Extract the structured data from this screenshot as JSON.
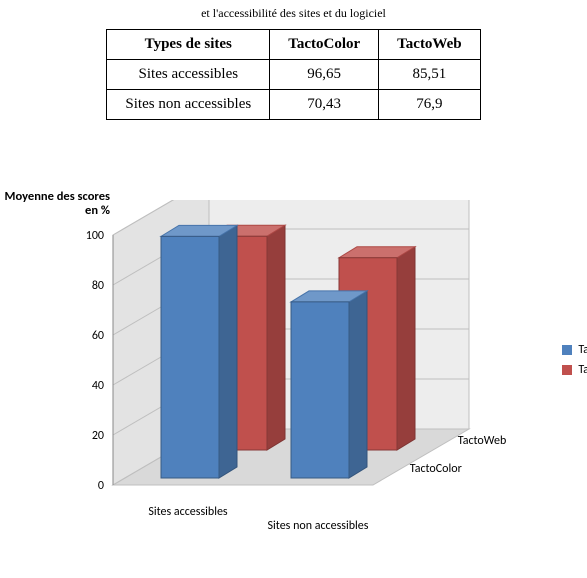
{
  "caption_partial": "et l'accessibilité des sites et du logiciel",
  "table": {
    "columns": [
      "Types de sites",
      "TactoColor",
      "TactoWeb"
    ],
    "rows": [
      [
        "Sites accessibles",
        "96,65",
        "85,51"
      ],
      [
        "Sites non accessibles",
        "70,43",
        "76,9"
      ]
    ]
  },
  "chart": {
    "type": "bar-3d",
    "y_axis_title": "Moyenne des scores en %",
    "ylim": [
      0,
      100
    ],
    "ytick_step": 20,
    "yticks": [
      0,
      20,
      40,
      60,
      80,
      100
    ],
    "categories": [
      "Sites accessibles",
      "Sites non accessibles"
    ],
    "series": [
      {
        "name": "TactoColor",
        "color": "#4f81bd",
        "values": [
          96.65,
          70.43
        ]
      },
      {
        "name": "TactoWeb",
        "color": "#c0504d",
        "values": [
          85.51,
          76.9
        ]
      }
    ],
    "depth_axis_labels": [
      "TactoColor",
      "TactoWeb"
    ],
    "legend_labels": [
      "TactoColor",
      "TactoWeb"
    ],
    "legend_visible_prefix": "Ta",
    "colors": {
      "floor": "#d9d9d9",
      "floor_edge": "#bfbfbf",
      "back_wall": "#ededed",
      "side_wall": "#e3e3e3",
      "grid": "#bfbfbf",
      "bar_top_lighten": 0.18,
      "bar_side_darken": 0.22
    },
    "font": {
      "family": "Calibri, Arial, sans-serif",
      "tick_size": 12,
      "title_size": 12.5
    }
  }
}
